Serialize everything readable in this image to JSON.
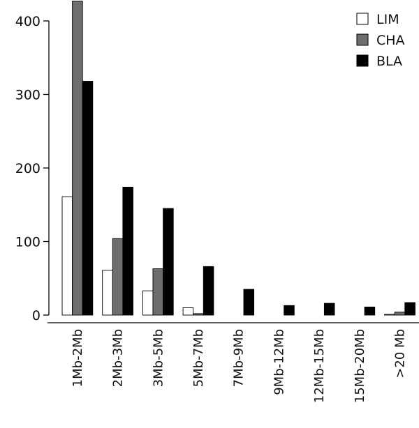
{
  "chart_data": {
    "type": "bar",
    "title": "",
    "xlabel": "",
    "ylabel": "",
    "ylim": [
      0,
      400
    ],
    "yticks": [
      0,
      100,
      200,
      300,
      400
    ],
    "categories": [
      "1Mb-2Mb",
      "2Mb-3Mb",
      "3Mb-5Mb",
      "5Mb-7Mb",
      "7Mb-9Mb",
      "9Mb-12Mb",
      "12Mb-15Mb",
      "15Mb-20Mb",
      ">20 Mb"
    ],
    "series": [
      {
        "name": "LIM",
        "color": "#ffffff",
        "values": [
          161,
          61,
          33,
          10,
          0,
          0,
          0,
          0,
          1
        ]
      },
      {
        "name": "CHA",
        "color": "#6e6e6e",
        "values": [
          427,
          104,
          63,
          2,
          0,
          0,
          0,
          0,
          4
        ]
      },
      {
        "name": "BLA",
        "color": "#000000",
        "values": [
          318,
          174,
          145,
          66,
          35,
          13,
          16,
          11,
          17
        ]
      }
    ],
    "legend_position": "top-right",
    "grid": false,
    "category_label_rotation": "vertical"
  }
}
